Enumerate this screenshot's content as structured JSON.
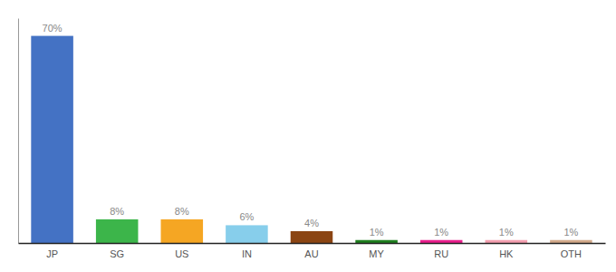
{
  "chart_data": {
    "type": "bar",
    "categories": [
      "JP",
      "SG",
      "US",
      "IN",
      "AU",
      "MY",
      "RU",
      "HK",
      "OTH"
    ],
    "values": [
      70,
      8,
      8,
      6,
      4,
      1,
      1,
      1,
      1
    ],
    "value_labels": [
      "70%",
      "8%",
      "8%",
      "6%",
      "4%",
      "1%",
      "1%",
      "1%",
      "1%"
    ],
    "colors": [
      "#4472c4",
      "#3cb54a",
      "#f5a623",
      "#87ceeb",
      "#8b4513",
      "#1e7e1e",
      "#e91e8c",
      "#f4a0b0",
      "#d2a98a"
    ],
    "ylim": [
      0,
      76
    ],
    "data_labels": true,
    "grid": false,
    "tick_labels": "x"
  }
}
